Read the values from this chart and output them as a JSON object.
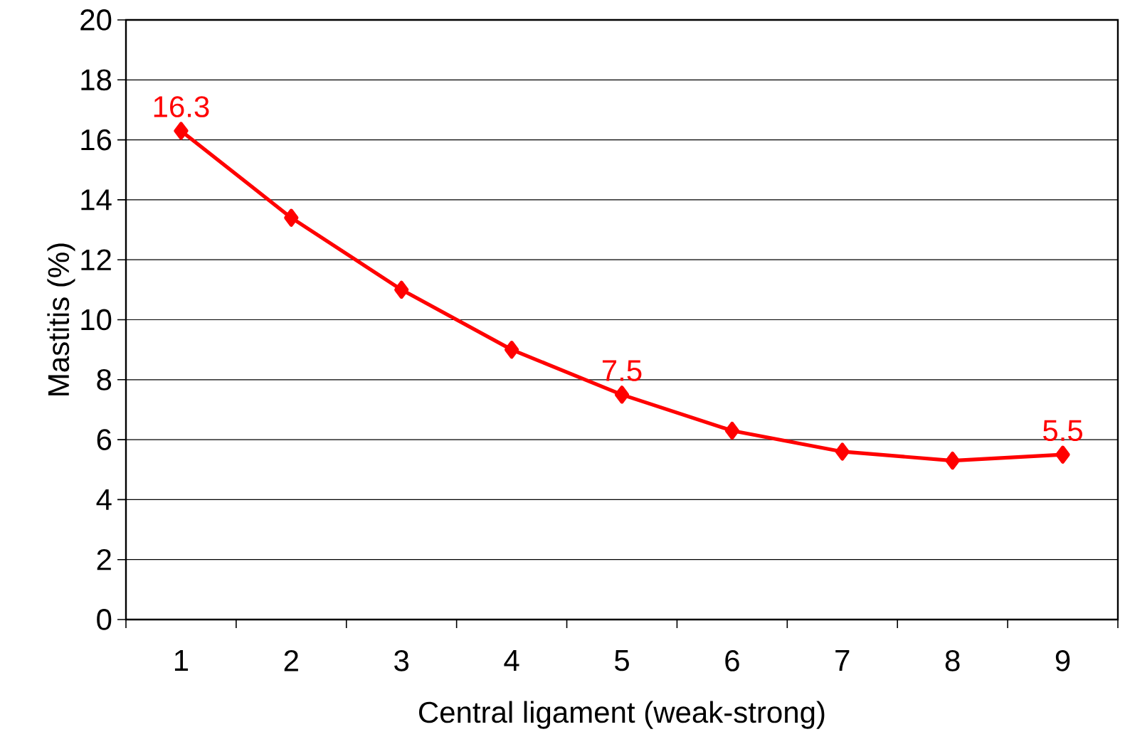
{
  "chart_data": {
    "type": "line",
    "xlabel": "Central ligament (weak-strong)",
    "ylabel": "Mastitis (%)",
    "categories": [
      "1",
      "2",
      "3",
      "4",
      "5",
      "6",
      "7",
      "8",
      "9"
    ],
    "series": [
      {
        "color": "#ff0000",
        "values": [
          16.3,
          13.4,
          11.0,
          9.0,
          7.5,
          6.3,
          5.6,
          5.3,
          5.5
        ],
        "value_labels": [
          "16.3",
          null,
          null,
          null,
          "7.5",
          null,
          null,
          null,
          "5.5"
        ]
      }
    ],
    "ylim": [
      0,
      20
    ],
    "yticks": [
      0,
      2,
      4,
      6,
      8,
      10,
      12,
      14,
      16,
      18,
      20
    ],
    "grid": "y",
    "marker": "diamond",
    "line_style": "solid"
  }
}
